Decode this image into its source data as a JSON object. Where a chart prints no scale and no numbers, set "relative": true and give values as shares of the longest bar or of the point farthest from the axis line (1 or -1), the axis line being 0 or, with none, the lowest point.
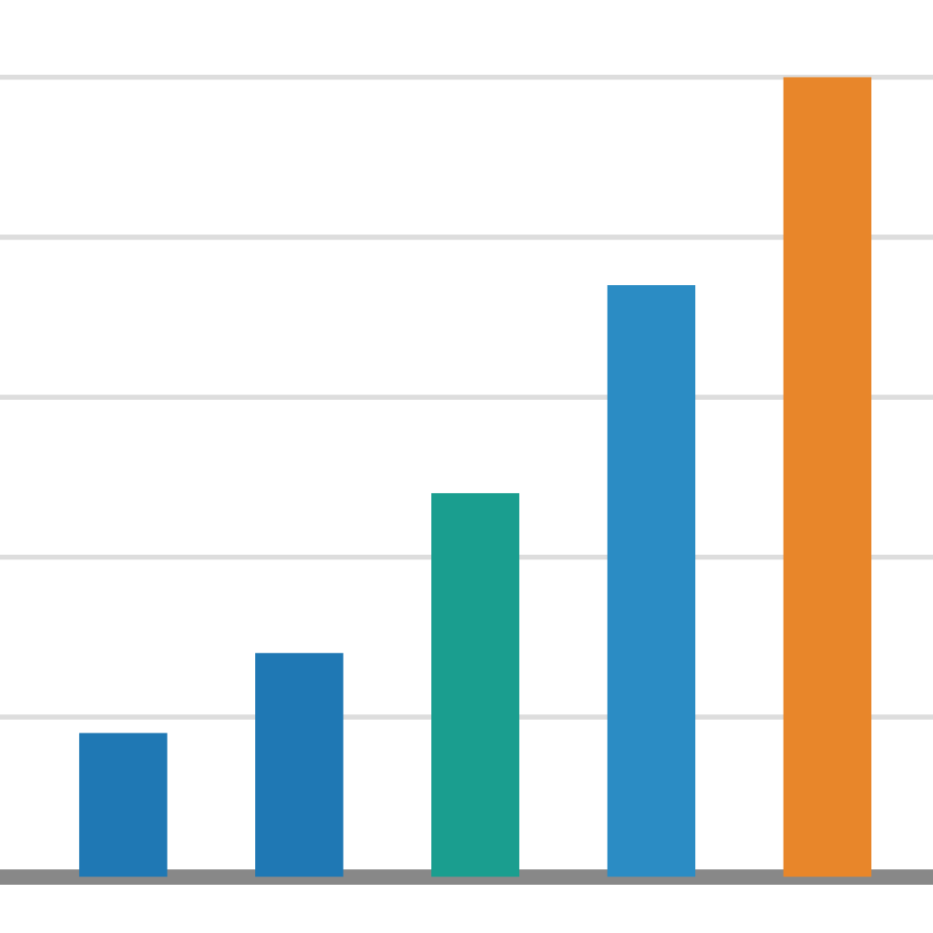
{
  "chart_data": {
    "type": "bar",
    "relative": true,
    "categories": [
      null,
      null,
      null,
      null,
      null
    ],
    "values": [
      0.18,
      0.28,
      0.48,
      0.74,
      1
    ],
    "colors": [
      "#1f78b4",
      "#1f78b4",
      "#1a9e8f",
      "#2b8cc4",
      "#e8862a"
    ],
    "grid": "y"
  }
}
